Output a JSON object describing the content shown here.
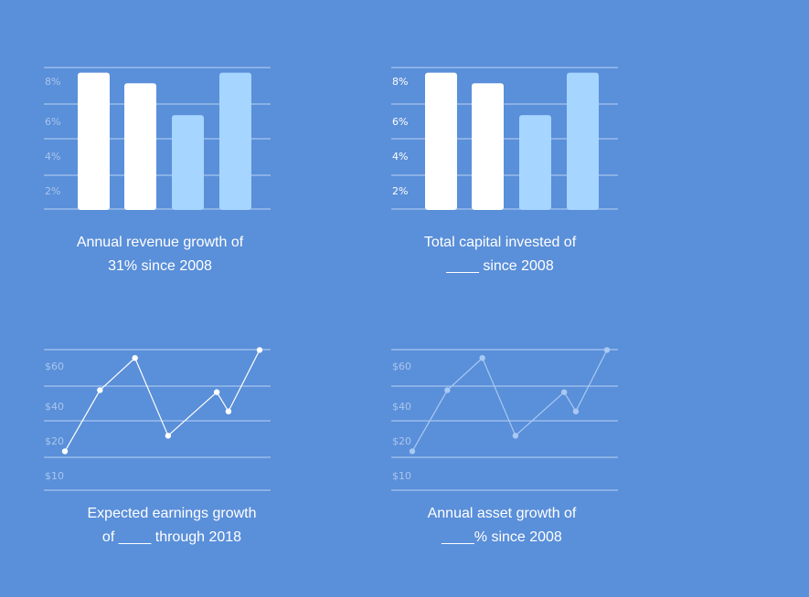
{
  "colors": {
    "background": "#5a8fd9",
    "white": "#ffffff",
    "light_blue": "#a6d5ff",
    "grid": "#b9d3f3",
    "faded_label": "#a9c6ee",
    "faded_line": "#a9c9f3"
  },
  "chart_data": [
    {
      "type": "bar",
      "yticks": [
        "8%",
        "6%",
        "4%",
        "2%"
      ],
      "values": [
        7.7,
        7.1,
        5.3,
        7.7
      ],
      "bar_colors": [
        "#ffffff",
        "#ffffff",
        "#a6d5ff",
        "#a6d5ff"
      ],
      "grid": true,
      "caption": [
        "Annual revenue growth of",
        "31% since 2008"
      ]
    },
    {
      "type": "bar",
      "yticks": [
        "8%",
        "6%",
        "4%",
        "2%"
      ],
      "values": [
        7.7,
        7.1,
        5.3,
        7.7
      ],
      "bar_colors": [
        "#ffffff",
        "#ffffff",
        "#a6d5ff",
        "#a6d5ff"
      ],
      "grid": true,
      "caption": [
        "Total capital invested of",
        "____ since 2008"
      ]
    },
    {
      "type": "line",
      "yticks": [
        "$60",
        "$40",
        "$20",
        "$10"
      ],
      "x": [
        0,
        18,
        36,
        53,
        78,
        84,
        100
      ],
      "values": [
        17,
        48,
        64,
        23,
        47,
        37,
        68
      ],
      "grid": true,
      "caption": [
        "Expected earnings growth",
        "of ____ through 2018"
      ]
    },
    {
      "type": "line",
      "yticks": [
        "$60",
        "$40",
        "$20",
        "$10"
      ],
      "x": [
        0,
        18,
        36,
        53,
        78,
        84,
        100
      ],
      "values": [
        17,
        48,
        64,
        23,
        47,
        37,
        68
      ],
      "grid": true,
      "caption": [
        "Annual asset growth of",
        "____% since 2008"
      ]
    }
  ]
}
